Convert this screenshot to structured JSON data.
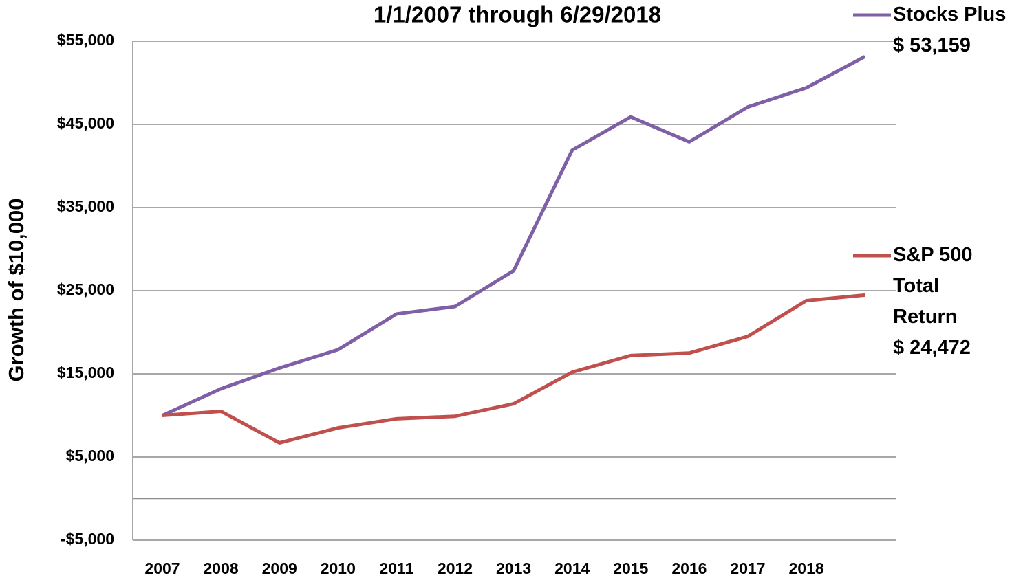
{
  "chart_data": {
    "type": "line",
    "title": "1/1/2007 through 6/29/2018",
    "y_label": "Growth of  $10,000",
    "categories": [
      "2007",
      "2008",
      "2009",
      "2010",
      "2011",
      "2012",
      "2013",
      "2014",
      "2015",
      "2016",
      "2017",
      "2018",
      null
    ],
    "series": [
      {
        "name": "Stocks Plus",
        "color": "#7f5fa6",
        "end_label": "$ 53,159",
        "values": [
          10000,
          13200,
          15700,
          17900,
          22200,
          23100,
          27400,
          41900,
          45900,
          42900,
          47100,
          49400,
          53159
        ]
      },
      {
        "name": "S&P 500 Total Return",
        "color": "#c0504d",
        "end_label": "$ 24,472",
        "values": [
          10000,
          10500,
          6700,
          8500,
          9600,
          9900,
          11400,
          15200,
          17200,
          17500,
          19500,
          23800,
          24472
        ]
      }
    ],
    "ylim": [
      -5000,
      55000
    ],
    "yticks": [
      {
        "value": -5000,
        "label": "-$5,000"
      },
      {
        "value": 5000,
        "label": "$5,000"
      },
      {
        "value": 15000,
        "label": "$15,000"
      },
      {
        "value": 25000,
        "label": "$25,000"
      },
      {
        "value": 35000,
        "label": "$35,000"
      },
      {
        "value": 45000,
        "label": "$45,000"
      },
      {
        "value": 55000,
        "label": "$55,000"
      }
    ],
    "hlines": [
      0
    ],
    "grid": true
  }
}
